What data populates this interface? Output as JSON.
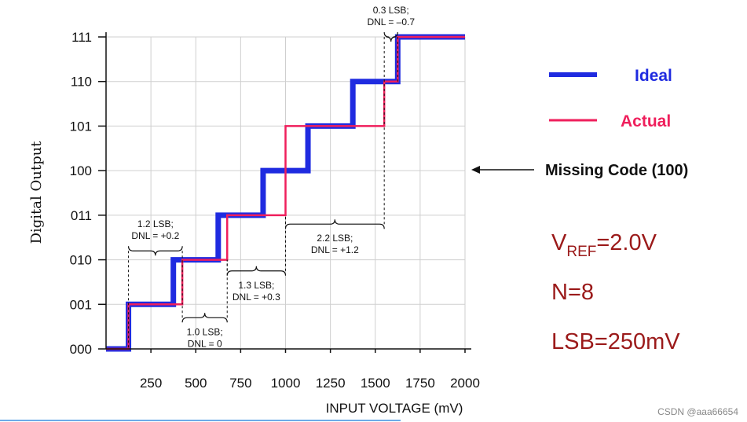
{
  "chart_data": {
    "type": "line",
    "xlabel": "INPUT VOLTAGE (mV)",
    "ylabel": "Digital Output",
    "xlim": [
      0,
      2000
    ],
    "x_ticks": [
      250,
      500,
      750,
      1000,
      1250,
      1500,
      1750,
      2000
    ],
    "y_ticks": [
      "000",
      "001",
      "010",
      "011",
      "100",
      "101",
      "110",
      "111"
    ],
    "grid": true,
    "series": [
      {
        "name": "Ideal",
        "color": "#1f2be0",
        "step": true,
        "x": [
          0,
          125,
          375,
          625,
          875,
          1125,
          1375,
          1625,
          2000
        ],
        "y": [
          0,
          1,
          2,
          3,
          4,
          5,
          6,
          7,
          7
        ]
      },
      {
        "name": "Actual",
        "color": "#ef1f5c",
        "step": true,
        "x": [
          0,
          125,
          425,
          675,
          1000,
          1550,
          1625,
          2000
        ],
        "y": [
          0,
          1,
          2,
          3,
          5,
          6,
          7,
          7
        ]
      }
    ],
    "annotations": [
      {
        "lines": [
          "1.2 LSB;",
          "DNL = +0.2"
        ],
        "x_from": 125,
        "x_to": 425,
        "y": 2.2,
        "side": "above"
      },
      {
        "lines": [
          "1.0 LSB;",
          "DNL = 0"
        ],
        "x_from": 425,
        "x_to": 675,
        "y": 0.7,
        "side": "below"
      },
      {
        "lines": [
          "1.3 LSB;",
          "DNL = +0.3"
        ],
        "x_from": 675,
        "x_to": 1000,
        "y": 1.75,
        "side": "below"
      },
      {
        "lines": [
          "2.2 LSB;",
          "DNL = +1.2"
        ],
        "x_from": 1000,
        "x_to": 1550,
        "y": 2.8,
        "side": "below"
      },
      {
        "lines": [
          "0.3 LSB;",
          "DNL = –0.7"
        ],
        "x_from": 1550,
        "x_to": 1625,
        "y": 7.0,
        "side": "above"
      }
    ],
    "legend_position": "right"
  },
  "missing_code_label": "Missing Code (100)",
  "specs": {
    "vref_v": "V",
    "vref_sub": "REF",
    "vref_value": "=2.0V",
    "n": "N=8",
    "lsb": "LSB=250mV"
  },
  "watermark": "CSDN @aaa66654"
}
